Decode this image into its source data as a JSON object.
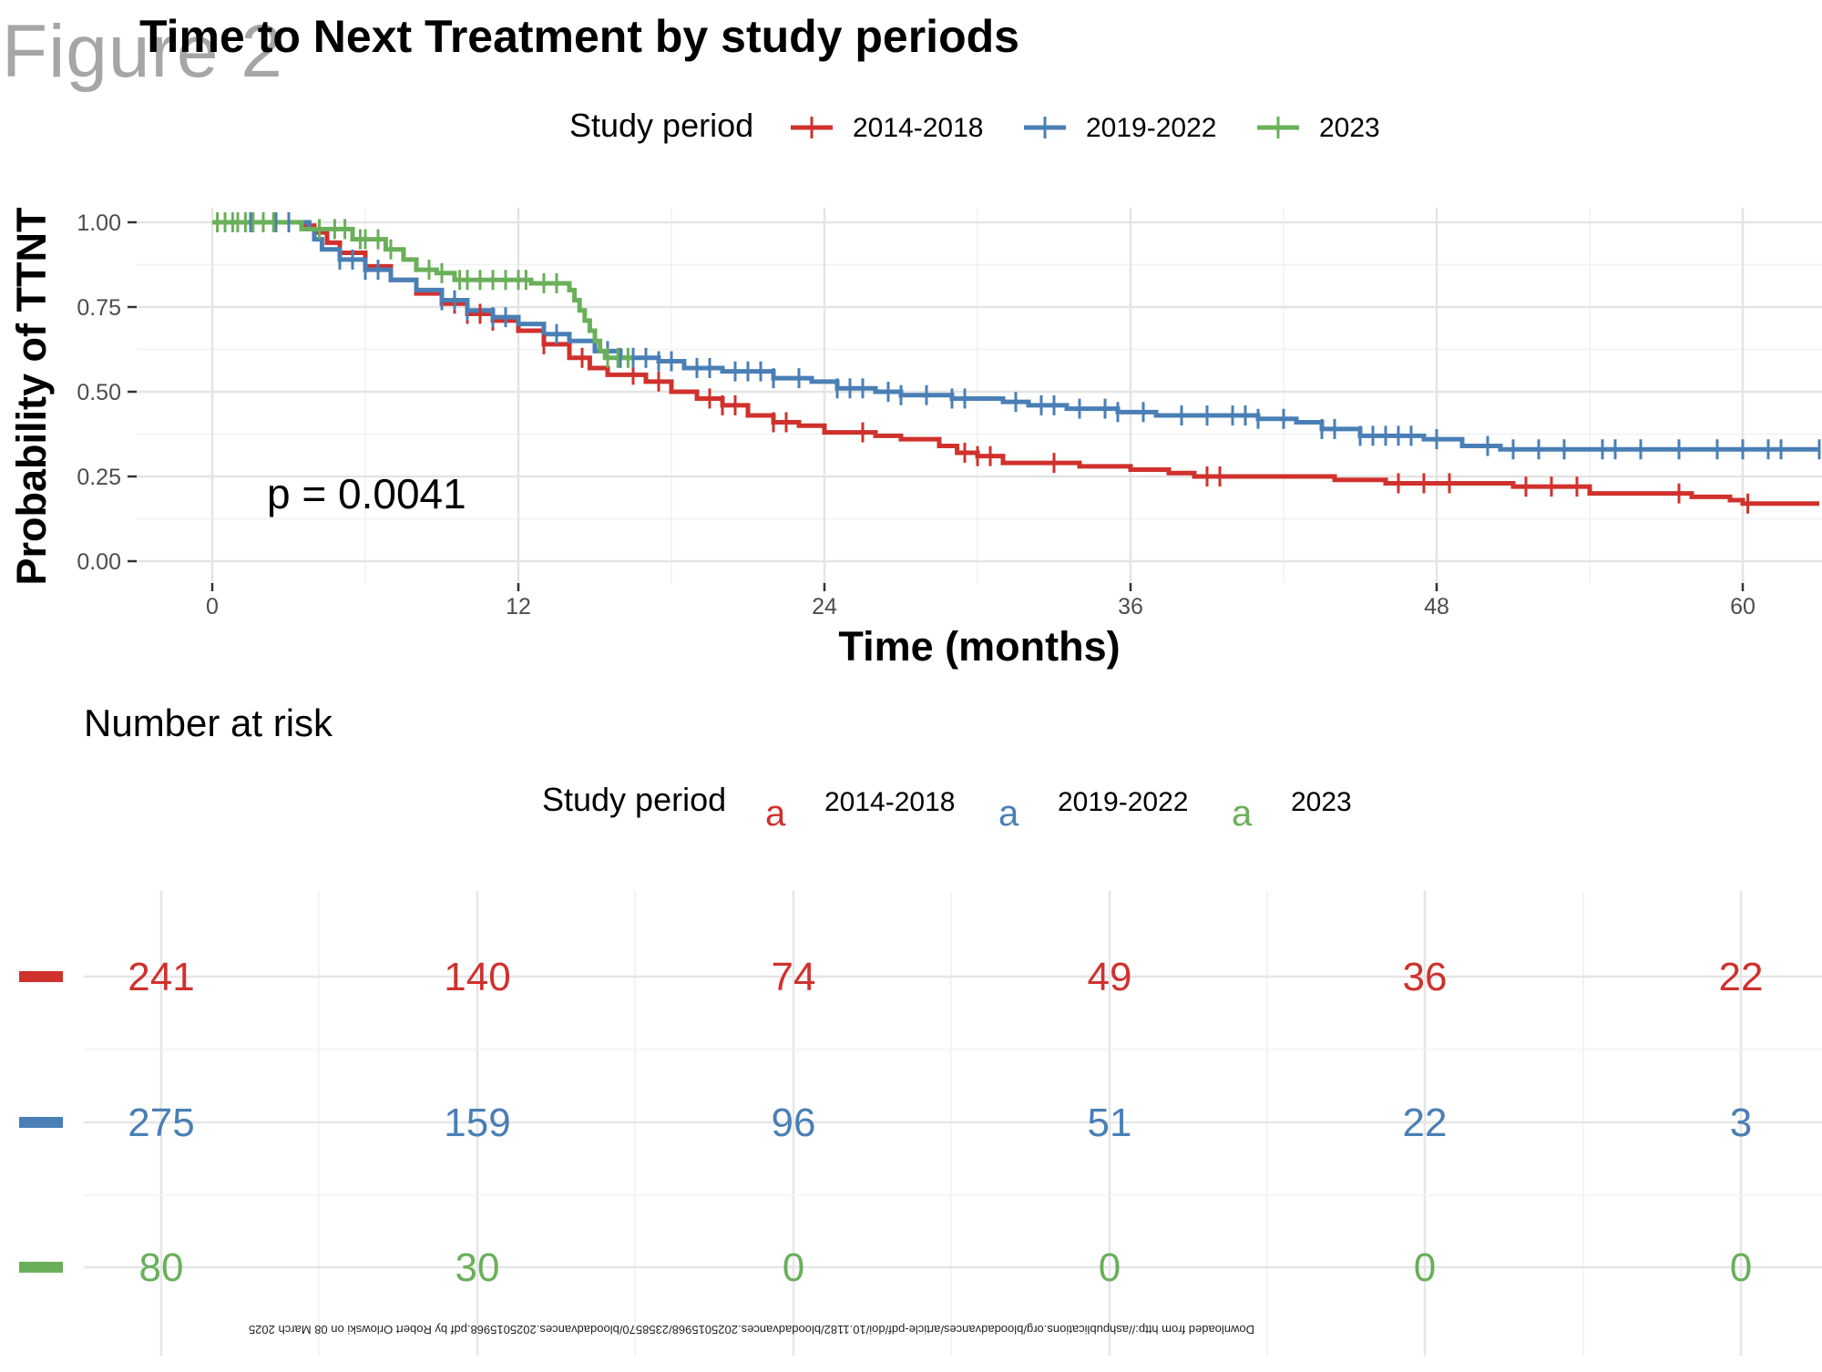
{
  "figure_label": "Figure 2",
  "watermark": "Downloaded from http://ashpublications.org/bloodadvances/article-pdf/doi/10.1182/bloodadvances.2025015968/2358570/bloodadvances.2025015968.pdf by Robert Orlowski on 08 March 2025",
  "chart_data": [
    {
      "type": "line",
      "subtype": "kaplan-meier",
      "title": "Time to Next Treatment by study periods",
      "xlabel": "Time (months)",
      "ylabel": "Probability of TTNT",
      "xlim": [
        0,
        63
      ],
      "ylim": [
        0,
        1
      ],
      "xticks": [
        "0",
        "12",
        "24",
        "36",
        "48",
        "60"
      ],
      "xtick_values": [
        0,
        12,
        24,
        36,
        48,
        60
      ],
      "yticks": [
        "0.00",
        "0.25",
        "0.50",
        "0.75",
        "1.00"
      ],
      "ytick_values": [
        0,
        0.25,
        0.5,
        0.75,
        1.0
      ],
      "grid": true,
      "legend": {
        "title": "Study period",
        "position": "top"
      },
      "annotation": "p = 0.0041",
      "series": [
        {
          "name": "2014-2018",
          "color": "#D0312D",
          "steps": [
            [
              0,
              1.0
            ],
            [
              3.6,
              0.99
            ],
            [
              4.0,
              0.97
            ],
            [
              4.5,
              0.94
            ],
            [
              5.0,
              0.91
            ],
            [
              6.0,
              0.87
            ],
            [
              7.0,
              0.83
            ],
            [
              8.0,
              0.79
            ],
            [
              9.0,
              0.76
            ],
            [
              10.0,
              0.73
            ],
            [
              11.0,
              0.71
            ],
            [
              12.0,
              0.68
            ],
            [
              13.0,
              0.64
            ],
            [
              14.0,
              0.6
            ],
            [
              14.8,
              0.57
            ],
            [
              15.5,
              0.55
            ],
            [
              17.0,
              0.53
            ],
            [
              18.0,
              0.5
            ],
            [
              19.0,
              0.48
            ],
            [
              20.0,
              0.46
            ],
            [
              21.0,
              0.43
            ],
            [
              22.0,
              0.41
            ],
            [
              23.0,
              0.4
            ],
            [
              24.0,
              0.38
            ],
            [
              25.5,
              0.38
            ],
            [
              26.0,
              0.37
            ],
            [
              27.0,
              0.36
            ],
            [
              28.5,
              0.34
            ],
            [
              29.2,
              0.32
            ],
            [
              30.0,
              0.31
            ],
            [
              31.0,
              0.29
            ],
            [
              34.0,
              0.28
            ],
            [
              36.0,
              0.27
            ],
            [
              37.5,
              0.26
            ],
            [
              38.5,
              0.25
            ],
            [
              44.0,
              0.24
            ],
            [
              46.0,
              0.23
            ],
            [
              51.0,
              0.22
            ],
            [
              54.0,
              0.2
            ],
            [
              58.0,
              0.19
            ],
            [
              59.5,
              0.18
            ],
            [
              60.0,
              0.17
            ],
            [
              63.0,
              0.17
            ]
          ],
          "censor_times": [
            1.5,
            2.0,
            2.5,
            3.0,
            9.5,
            10.0,
            10.5,
            11.0,
            13.0,
            14.5,
            16.5,
            17.5,
            19.5,
            20.0,
            20.5,
            22.0,
            22.5,
            25.5,
            29.5,
            30.0,
            30.5,
            33.0,
            39.0,
            39.5,
            46.5,
            47.5,
            48.5,
            51.5,
            52.5,
            53.5,
            57.5,
            60.2
          ]
        },
        {
          "name": "2019-2022",
          "color": "#4A7FB5",
          "steps": [
            [
              0,
              1.0
            ],
            [
              3.8,
              0.98
            ],
            [
              4.0,
              0.95
            ],
            [
              4.3,
              0.92
            ],
            [
              5.0,
              0.89
            ],
            [
              6.0,
              0.86
            ],
            [
              7.0,
              0.83
            ],
            [
              8.0,
              0.8
            ],
            [
              9.0,
              0.77
            ],
            [
              10.0,
              0.74
            ],
            [
              11.0,
              0.72
            ],
            [
              12.0,
              0.7
            ],
            [
              13.0,
              0.67
            ],
            [
              14.0,
              0.65
            ],
            [
              15.0,
              0.62
            ],
            [
              16.0,
              0.6
            ],
            [
              17.5,
              0.59
            ],
            [
              18.5,
              0.57
            ],
            [
              20.0,
              0.56
            ],
            [
              22.0,
              0.54
            ],
            [
              23.5,
              0.53
            ],
            [
              24.5,
              0.51
            ],
            [
              26.0,
              0.5
            ],
            [
              27.0,
              0.49
            ],
            [
              29.0,
              0.48
            ],
            [
              31.0,
              0.47
            ],
            [
              32.0,
              0.46
            ],
            [
              33.5,
              0.45
            ],
            [
              35.5,
              0.44
            ],
            [
              37.0,
              0.43
            ],
            [
              41.0,
              0.42
            ],
            [
              42.5,
              0.41
            ],
            [
              43.5,
              0.39
            ],
            [
              45.0,
              0.37
            ],
            [
              47.5,
              0.36
            ],
            [
              49.0,
              0.34
            ],
            [
              50.5,
              0.33
            ],
            [
              63.0,
              0.33
            ]
          ],
          "censor_times": [
            0.5,
            1.0,
            1.5,
            2.0,
            2.5,
            3.0,
            5.0,
            5.5,
            6.0,
            6.5,
            9.0,
            9.5,
            10.0,
            11.0,
            11.5,
            13.5,
            15.5,
            16.0,
            16.5,
            17.0,
            17.5,
            18.0,
            19.0,
            19.5,
            20.5,
            21.0,
            21.5,
            22.0,
            23.0,
            24.5,
            25.0,
            25.5,
            26.5,
            27.0,
            28.0,
            29.0,
            29.5,
            31.5,
            32.5,
            33.0,
            34.0,
            35.0,
            35.5,
            36.5,
            38.0,
            39.0,
            40.0,
            40.5,
            41.0,
            42.0,
            43.5,
            44.0,
            45.0,
            45.5,
            46.0,
            46.5,
            47.0,
            48.0,
            50.0,
            51.0,
            52.0,
            53.0,
            54.5,
            55.0,
            56.0,
            57.5,
            59.0,
            60.0,
            61.0,
            61.5,
            63.0
          ]
        },
        {
          "name": "2023",
          "color": "#6AAF5A",
          "steps": [
            [
              0,
              1.0
            ],
            [
              3.5,
              0.98
            ],
            [
              5.5,
              0.95
            ],
            [
              6.8,
              0.92
            ],
            [
              7.5,
              0.89
            ],
            [
              8.0,
              0.86
            ],
            [
              8.8,
              0.85
            ],
            [
              9.5,
              0.83
            ],
            [
              12.5,
              0.82
            ],
            [
              14.0,
              0.8
            ],
            [
              14.2,
              0.77
            ],
            [
              14.4,
              0.74
            ],
            [
              14.6,
              0.71
            ],
            [
              14.8,
              0.68
            ],
            [
              15.0,
              0.65
            ],
            [
              15.2,
              0.62
            ],
            [
              15.4,
              0.6
            ],
            [
              16.5,
              0.6
            ]
          ],
          "censor_times": [
            0.2,
            0.5,
            0.8,
            1.0,
            1.3,
            1.6,
            2.0,
            2.4,
            4.2,
            4.8,
            5.2,
            5.8,
            6.0,
            6.5,
            7.0,
            8.5,
            9.0,
            9.7,
            10.0,
            10.5,
            11.0,
            11.5,
            12.0,
            12.3,
            13.0,
            13.5,
            15.5,
            15.9,
            16.3
          ]
        }
      ]
    },
    {
      "type": "table",
      "title": "Number at risk",
      "legend": {
        "title": "Study period",
        "key_glyph": "a",
        "position": "top"
      },
      "columns_time": [
        0,
        12,
        24,
        36,
        48,
        60
      ],
      "series": [
        {
          "name": "2014-2018",
          "color": "#D0312D",
          "values": [
            "241",
            "140",
            "74",
            "49",
            "36",
            "22"
          ]
        },
        {
          "name": "2019-2022",
          "color": "#4A7FB5",
          "values": [
            "275",
            "159",
            "96",
            "51",
            "22",
            "3"
          ]
        },
        {
          "name": "2023",
          "color": "#6AAF5A",
          "values": [
            "80",
            "30",
            "0",
            "0",
            "0",
            "0"
          ]
        }
      ]
    }
  ]
}
